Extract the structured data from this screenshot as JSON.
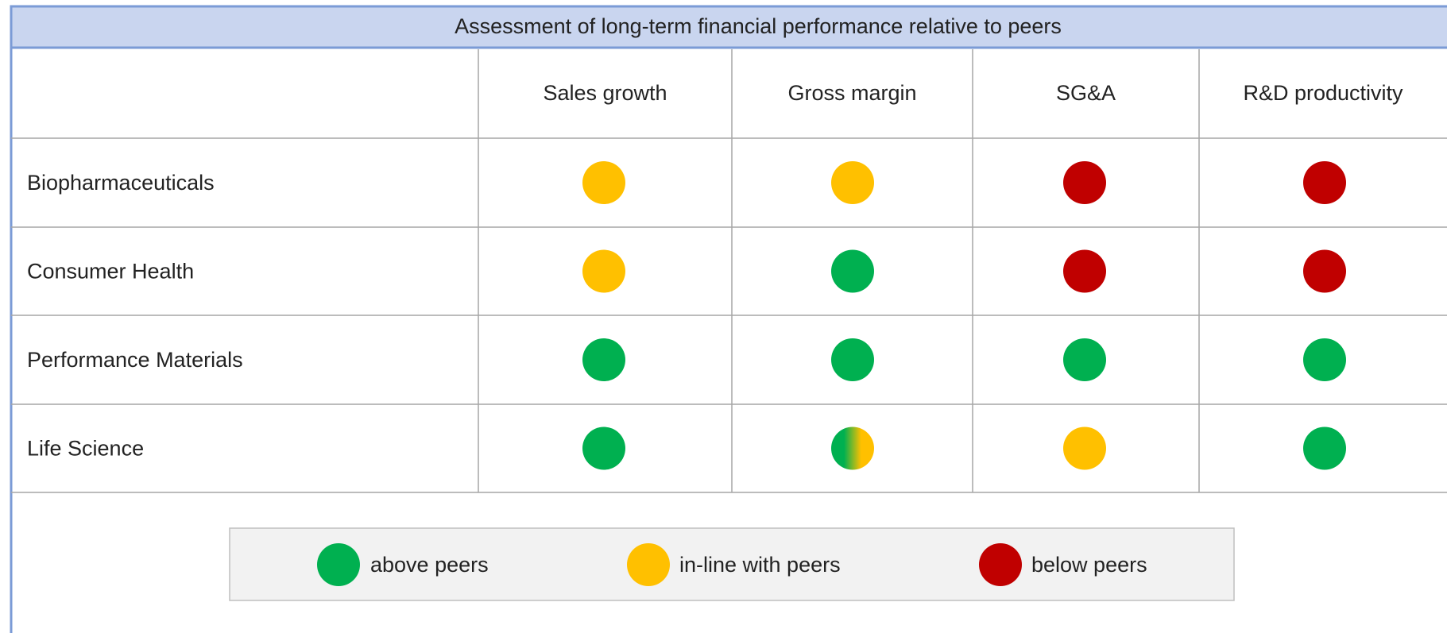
{
  "title": "Assessment of long-term financial performance relative to peers",
  "columns": [
    "Sales  growth",
    "Gross margin",
    "SG&A",
    "R&D productivity"
  ],
  "rows": [
    {
      "label": "Biopharmaceuticals",
      "cells": [
        "#ffc000",
        "#ffc000",
        "#c00000",
        "#c00000"
      ]
    },
    {
      "label": "Consumer Health",
      "cells": [
        "#ffc000",
        "#00b050",
        "#c00000",
        "#c00000"
      ]
    },
    {
      "label": "Performance Materials",
      "cells": [
        "#00b050",
        "#00b050",
        "#00b050",
        "#00b050"
      ]
    },
    {
      "label": "Life Science",
      "cells": [
        "#00b050",
        [
          "#00b050",
          "#ffc000"
        ],
        "#ffc000",
        "#00b050"
      ]
    }
  ],
  "legend": [
    {
      "label": "above peers",
      "color": "#00b050"
    },
    {
      "label": "in-line with peers",
      "color": "#ffc000"
    },
    {
      "label": "below peers",
      "color": "#c00000"
    }
  ]
}
